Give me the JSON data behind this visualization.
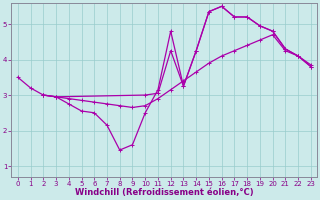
{
  "background_color": "#cceaea",
  "line_color": "#aa00aa",
  "grid_color": "#99cccc",
  "axis_color": "#888899",
  "xlabel": "Windchill (Refroidissement éolien,°C)",
  "xlim": [
    -0.5,
    23.5
  ],
  "ylim": [
    0.7,
    5.6
  ],
  "xticks": [
    0,
    1,
    2,
    3,
    4,
    5,
    6,
    7,
    8,
    9,
    10,
    11,
    12,
    13,
    14,
    15,
    16,
    17,
    18,
    19,
    20,
    21,
    22,
    23
  ],
  "yticks": [
    1,
    2,
    3,
    4,
    5
  ],
  "lines": [
    {
      "x": [
        0,
        1,
        2,
        3,
        4,
        5,
        6,
        7,
        8,
        9,
        10,
        11,
        12,
        13,
        14,
        15,
        16,
        17,
        18,
        19,
        20,
        21,
        22,
        23
      ],
      "y": [
        3.5,
        3.2,
        3.0,
        2.95,
        2.75,
        2.55,
        2.5,
        2.15,
        1.45,
        1.6,
        2.5,
        3.15,
        4.8,
        3.25,
        4.25,
        5.35,
        5.5,
        5.2,
        5.2,
        4.95,
        4.8,
        4.3,
        4.1,
        3.8
      ]
    },
    {
      "x": [
        2,
        3,
        4,
        5,
        6,
        7,
        8,
        9,
        10,
        11,
        12,
        13,
        14,
        15,
        16,
        17,
        18,
        19,
        20,
        21,
        22,
        23
      ],
      "y": [
        3.0,
        2.95,
        2.9,
        2.85,
        2.8,
        2.75,
        2.7,
        2.65,
        2.7,
        2.9,
        3.15,
        3.4,
        3.65,
        3.9,
        4.1,
        4.25,
        4.4,
        4.55,
        4.7,
        4.25,
        4.1,
        3.85
      ]
    },
    {
      "x": [
        2,
        3,
        10,
        11,
        12,
        13,
        14,
        15,
        16,
        17,
        18,
        19,
        20,
        21,
        22,
        23
      ],
      "y": [
        3.0,
        2.95,
        3.0,
        3.05,
        4.25,
        3.25,
        4.25,
        5.35,
        5.5,
        5.2,
        5.2,
        4.95,
        4.8,
        4.3,
        4.1,
        3.8
      ]
    }
  ],
  "marker": "+",
  "markersize": 3.5,
  "linewidth": 0.9,
  "font_color": "#880088",
  "tick_fontsize": 5.0,
  "label_fontsize": 6.0,
  "figsize": [
    3.2,
    2.0
  ],
  "dpi": 100
}
